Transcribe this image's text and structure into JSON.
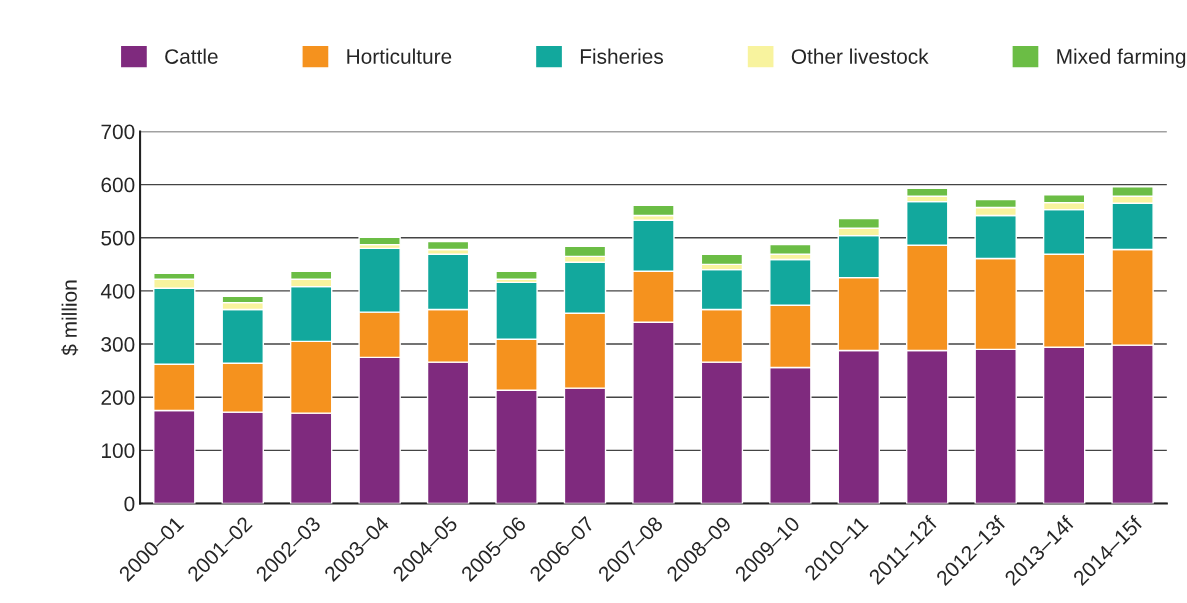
{
  "chart_data": {
    "type": "bar",
    "stacked": true,
    "ylabel": "$ million",
    "categories": [
      "2000–01",
      "2001–02",
      "2002–03",
      "2003–04",
      "2004–05",
      "2005–06",
      "2006–07",
      "2007–08",
      "2008–09",
      "2009–10",
      "2010–11",
      "2011–12f",
      "2012–13f",
      "2013–14f",
      "2014–15f"
    ],
    "series": [
      {
        "name": "Cattle",
        "color": "#7f2a7e",
        "values": [
          175,
          172,
          170,
          275,
          266,
          213,
          217,
          341,
          266,
          256,
          288,
          288,
          290,
          294,
          298
        ]
      },
      {
        "name": "Horticulture",
        "color": "#f5921e",
        "values": [
          87,
          92,
          135,
          85,
          99,
          96,
          141,
          96,
          99,
          117,
          137,
          198,
          171,
          175,
          180
        ]
      },
      {
        "name": "Fisheries",
        "color": "#12a89d",
        "values": [
          143,
          101,
          103,
          120,
          104,
          107,
          96,
          96,
          75,
          86,
          79,
          82,
          81,
          84,
          87
        ]
      },
      {
        "name": "Other livestock",
        "color": "#f8f39e",
        "values": [
          17,
          13,
          14,
          7,
          9,
          6,
          11,
          9,
          10,
          10,
          14,
          10,
          15,
          13,
          13
        ]
      },
      {
        "name": "Mixed farming",
        "color": "#6bbd45",
        "values": [
          11,
          12,
          15,
          14,
          15,
          15,
          19,
          19,
          19,
          18,
          18,
          15,
          15,
          15,
          18
        ]
      }
    ],
    "ylim": [
      0,
      700
    ],
    "yticks": [
      0,
      100,
      200,
      300,
      400,
      500,
      600,
      700
    ],
    "grid": "y",
    "legend": "top"
  }
}
